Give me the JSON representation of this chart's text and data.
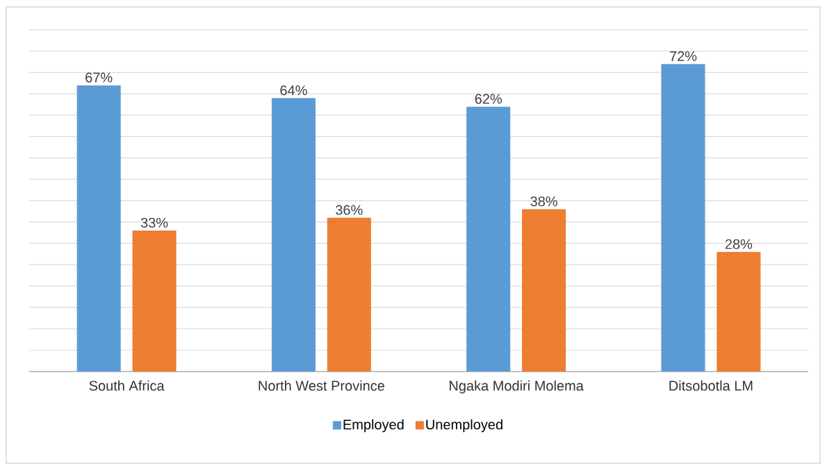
{
  "chart_data": {
    "type": "bar",
    "categories": [
      "South Africa",
      "North West Province",
      "Ngaka Modiri Molema",
      "Ditsobotla LM"
    ],
    "series": [
      {
        "name": "Employed",
        "color": "#5b9bd5",
        "values": [
          67,
          64,
          62,
          72
        ],
        "value_labels": [
          "67%",
          "64%",
          "62%",
          "72%"
        ]
      },
      {
        "name": "Unemployed",
        "color": "#ed7d31",
        "values": [
          33,
          36,
          38,
          28
        ],
        "value_labels": [
          "33%",
          "36%",
          "38%",
          "28%"
        ]
      }
    ],
    "tick_labels": "x",
    "grid": "y",
    "legend": "bottom"
  }
}
